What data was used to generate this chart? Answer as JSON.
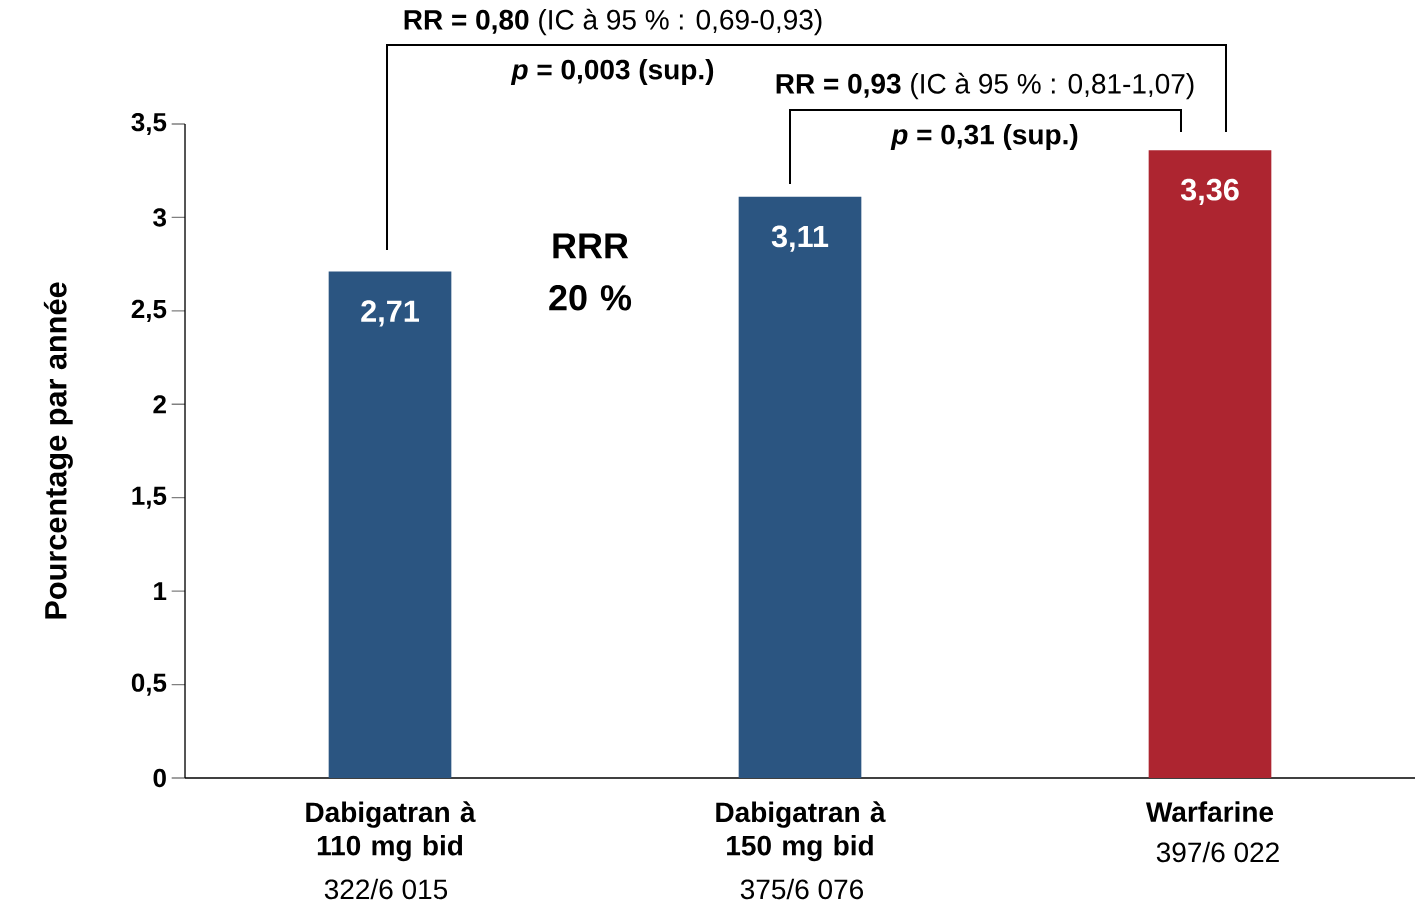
{
  "chart_data": {
    "type": "bar",
    "ylabel": "Pourcentage par année",
    "categories": [
      "Dabigatran à 110 mg bid",
      "Dabigatran à 150 mg bid",
      "Warfarine"
    ],
    "values": [
      2.71,
      3.11,
      3.36
    ],
    "value_labels": [
      "2,71",
      "3,11",
      "3,36"
    ],
    "colors": [
      "#2b5581",
      "#2b5581",
      "#ad2530"
    ],
    "ylim": [
      0,
      3.5
    ],
    "yticks": [
      0,
      {
        "value": 0.5,
        "label": "0,5"
      },
      1,
      {
        "value": 1.5,
        "label": "1,5"
      },
      2,
      {
        "value": 2.5,
        "label": "2,5"
      },
      3,
      {
        "value": 3.5,
        "label": "3,5"
      }
    ],
    "grid": false,
    "annotations": [
      "**RR = 0,80** (IC à 95 % : 0,69-0,93)",
      "*p* = 0,003 (sup.)",
      "**RR = 0,93** (IC à 95 % : 0,81-1,07)",
      "*p* = 0,31 (sup.)",
      "RRR 20 %",
      "322/6 015",
      "375/6 076",
      "397/6 022"
    ]
  }
}
